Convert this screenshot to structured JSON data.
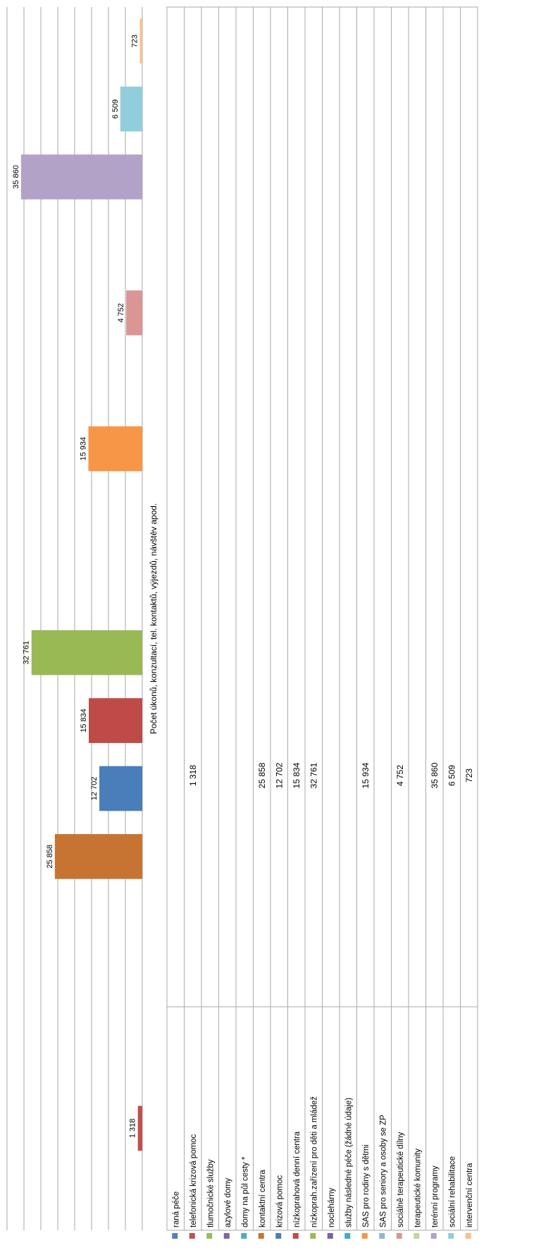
{
  "chart_data": {
    "type": "bar",
    "title": "",
    "xlabel": "Počet úkonů,  konzultací,  tel. kontaktů,  výjezdů,  návštěv apod.",
    "ylabel": "",
    "ylim": [
      0,
      40000
    ],
    "grid": true,
    "legend_placement": "bottom",
    "series": [
      {
        "name": "raná péče",
        "color": "#4F81BD",
        "values": [
          null,
          null,
          null,
          null,
          null,
          null,
          null,
          null,
          null,
          null,
          null,
          null,
          null,
          null,
          null,
          null,
          null,
          null
        ]
      },
      {
        "name": "telefonická krizová pomoc",
        "color": "#C0504D",
        "values": [
          null,
          1318,
          null,
          null,
          null,
          null,
          null,
          null,
          null,
          null,
          null,
          null,
          null,
          null,
          null,
          null,
          null,
          null
        ]
      },
      {
        "name": "tlumočnické služby",
        "color": "#9BBB59",
        "values": [
          null,
          null,
          null,
          null,
          null,
          null,
          null,
          null,
          null,
          null,
          null,
          null,
          null,
          null,
          null,
          null,
          null,
          null
        ]
      },
      {
        "name": "azylové domy",
        "color": "#8064A2",
        "values": [
          null,
          null,
          null,
          null,
          null,
          null,
          null,
          null,
          null,
          null,
          null,
          null,
          null,
          null,
          null,
          null,
          null,
          null
        ]
      },
      {
        "name": "domy na půl cesty *",
        "color": "#4BACC6",
        "values": [
          null,
          null,
          null,
          null,
          null,
          null,
          null,
          null,
          null,
          null,
          null,
          null,
          null,
          null,
          null,
          null,
          null,
          null
        ]
      },
      {
        "name": "kontaktní  centra",
        "color": "#C77432",
        "values": [
          null,
          null,
          null,
          null,
          null,
          25858,
          null,
          null,
          null,
          null,
          null,
          null,
          null,
          null,
          null,
          null,
          null,
          null
        ]
      },
      {
        "name": "krizová pomoc",
        "color": "#4A7EBB",
        "values": [
          null,
          null,
          null,
          null,
          null,
          null,
          12702,
          null,
          null,
          null,
          null,
          null,
          null,
          null,
          null,
          null,
          null,
          null
        ]
      },
      {
        "name": "nízkoprahová denní centra",
        "color": "#BE4B48",
        "values": [
          null,
          null,
          null,
          null,
          null,
          null,
          null,
          15834,
          null,
          null,
          null,
          null,
          null,
          null,
          null,
          null,
          null,
          null
        ]
      },
      {
        "name": "nízkoprah.zařízení pro děti a mládež",
        "color": "#98B954",
        "values": [
          null,
          null,
          null,
          null,
          null,
          null,
          null,
          null,
          32761,
          null,
          null,
          null,
          null,
          null,
          null,
          null,
          null,
          null
        ]
      },
      {
        "name": "noclehárny",
        "color": "#7D60A0",
        "values": [
          null,
          null,
          null,
          null,
          null,
          null,
          null,
          null,
          null,
          null,
          null,
          null,
          null,
          null,
          null,
          null,
          null,
          null
        ]
      },
      {
        "name": "služby následné péče (žádné údaje)",
        "color": "#46AAC5",
        "values": [
          null,
          null,
          null,
          null,
          null,
          null,
          null,
          null,
          null,
          null,
          null,
          null,
          null,
          null,
          null,
          null,
          null,
          null
        ]
      },
      {
        "name": "SAS pro rodiny s dětmi",
        "color": "#F79646",
        "values": [
          null,
          null,
          null,
          null,
          null,
          null,
          null,
          null,
          null,
          null,
          null,
          15934,
          null,
          null,
          null,
          null,
          null,
          null
        ]
      },
      {
        "name": "SAS pro seniory a osoby se ZP",
        "color": "#95B3D7",
        "values": [
          null,
          null,
          null,
          null,
          null,
          null,
          null,
          null,
          null,
          null,
          null,
          null,
          null,
          null,
          null,
          null,
          null,
          null
        ]
      },
      {
        "name": "sociálně terapeutické dílny",
        "color": "#D99694",
        "values": [
          null,
          null,
          null,
          null,
          null,
          null,
          null,
          null,
          null,
          null,
          null,
          null,
          null,
          4752,
          null,
          null,
          null,
          null
        ]
      },
      {
        "name": "terapeutické komunity",
        "color": "#C3D69B",
        "values": [
          null,
          null,
          null,
          null,
          null,
          null,
          null,
          null,
          null,
          null,
          null,
          null,
          null,
          null,
          null,
          null,
          null,
          null
        ]
      },
      {
        "name": "terénní programy",
        "color": "#B3A2C7",
        "values": [
          null,
          null,
          null,
          null,
          null,
          null,
          null,
          null,
          null,
          null,
          null,
          null,
          null,
          null,
          null,
          35860,
          null,
          null
        ]
      },
      {
        "name": "sociální rehabilitace",
        "color": "#92CDDC",
        "values": [
          null,
          null,
          null,
          null,
          null,
          null,
          null,
          null,
          null,
          null,
          null,
          null,
          null,
          null,
          null,
          null,
          6509,
          null
        ]
      },
      {
        "name": "intervenční centra",
        "color": "#FAC090",
        "values": [
          null,
          null,
          null,
          null,
          null,
          null,
          null,
          null,
          null,
          null,
          null,
          null,
          null,
          null,
          null,
          null,
          null,
          723
        ]
      }
    ],
    "table": {
      "values": [
        "",
        "1 318",
        "",
        "",
        "",
        "25 858",
        "12 702",
        "15 834",
        "32 761",
        "",
        "",
        "15 934",
        "",
        "4 752",
        "",
        "35 860",
        "6 509",
        "723"
      ]
    },
    "data_labels": [
      "",
      "1 318",
      "",
      "",
      "",
      "25 858",
      "12 702",
      "15 834",
      "32 761",
      "",
      "",
      "15 934",
      "",
      "4 752",
      "",
      "35 860",
      "6 509",
      "723"
    ]
  }
}
